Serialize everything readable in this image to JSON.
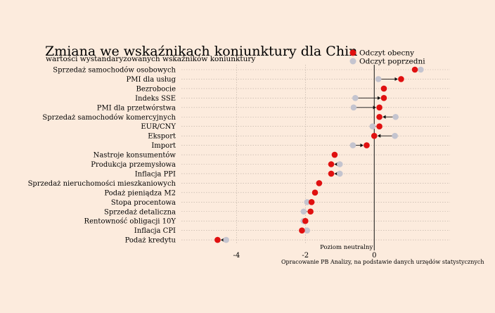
{
  "chart_data": {
    "type": "scatter",
    "title": "Zmiana we wskaźnikach koniunktury dla Chin",
    "subtitle": "wartości wystandaryzowanych wskaźników koniunktury",
    "xlim": [
      -5.6,
      2.2
    ],
    "xticks": [
      -4,
      -2,
      0
    ],
    "xtick_labels": [
      "-4",
      "-2",
      "0"
    ],
    "grid": true,
    "legend_placement": "top-right",
    "annotation": "Poziom neutralny",
    "source": "Opracowanie PB Analizy, na podstawie danych urzędów statystycznych",
    "categories": [
      "Sprzedaż samochodów osobowych",
      "PMI dla usług",
      "Bezrobocie",
      "Indeks SSE",
      "PMI dla przetwórstwa",
      "Sprzedaż samochodów komercyjnych",
      "EUR/CNY",
      "Eksport",
      "Import",
      "Nastroje konsumentów",
      "Produkcja przemysłowa",
      "Inflacja PPI",
      "Sprzedaż nieruchomości mieszkaniowych",
      "Podaż pieniądza M2",
      "Stopa procentowa",
      "Sprzedaż detaliczna",
      "Rentowność obligacji 10Y",
      "Inflacja CPI",
      "Podaż kredytu"
    ],
    "series": [
      {
        "name": "Odczyt obecny",
        "color": "#e01010",
        "values": [
          1.18,
          0.78,
          0.28,
          0.28,
          0.15,
          0.15,
          0.15,
          0.0,
          -0.22,
          -1.15,
          -1.25,
          -1.25,
          -1.6,
          -1.72,
          -1.82,
          -1.85,
          -2.0,
          -2.1,
          -4.55
        ]
      },
      {
        "name": "Odczyt poprzedni",
        "color": "#c4c4cf",
        "values": [
          1.35,
          0.12,
          0.28,
          -0.55,
          -0.6,
          0.62,
          -0.05,
          0.6,
          -0.62,
          -1.15,
          -1.0,
          -1.0,
          -1.6,
          -1.72,
          -1.95,
          -2.05,
          -2.05,
          -1.95,
          -4.3
        ]
      }
    ]
  }
}
